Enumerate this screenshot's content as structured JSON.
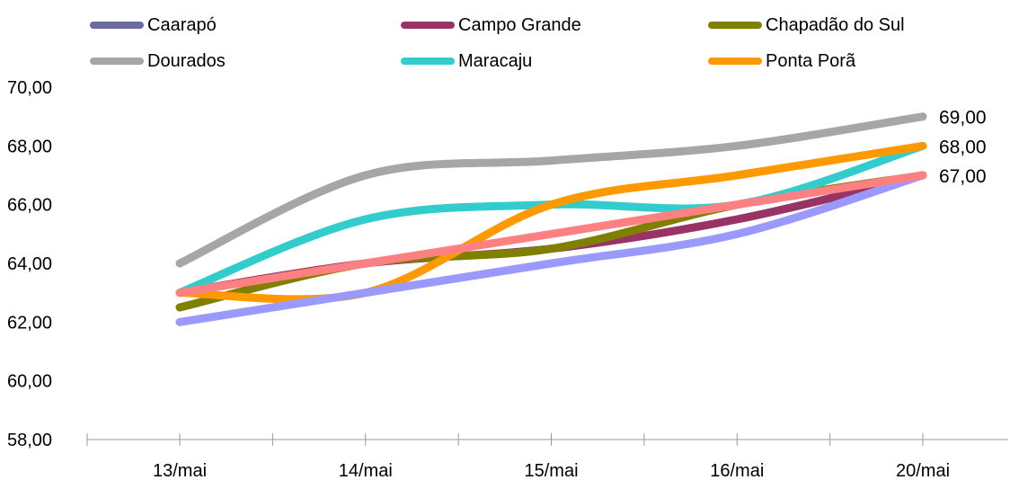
{
  "chart_data": {
    "type": "line",
    "categories": [
      "13/mai",
      "14/mai",
      "15/mai",
      "16/mai",
      "20/mai"
    ],
    "ylim": [
      58,
      70
    ],
    "yticks": [
      "58,00",
      "60,00",
      "62,00",
      "64,00",
      "66,00",
      "68,00",
      "70,00"
    ],
    "smooth": true,
    "legend_position": "top",
    "series": [
      {
        "name": "Caarapó",
        "color": "#6b6b9e",
        "values": [
          62,
          63,
          64,
          65,
          67
        ]
      },
      {
        "name": "Campo Grande",
        "color": "#993366",
        "values": [
          63,
          64,
          64.5,
          65.5,
          67
        ]
      },
      {
        "name": "Chapadão do Sul",
        "color": "#808000",
        "values": [
          62.5,
          64,
          64.5,
          66,
          67
        ]
      },
      {
        "name": "Dourados",
        "color": "#a6a6a6",
        "values": [
          64,
          67,
          67.5,
          68,
          69
        ]
      },
      {
        "name": "Maracaju",
        "color": "#33cccc",
        "values": [
          63,
          65.5,
          66,
          66,
          68
        ]
      },
      {
        "name": "Ponta Porã",
        "color": "#ff9900",
        "values": [
          63,
          63,
          66,
          67,
          68
        ]
      }
    ],
    "overlay_series": [
      {
        "color": "#9999ff",
        "values": [
          62,
          63,
          64,
          65,
          67
        ]
      },
      {
        "color": "#ff8080",
        "values": [
          63,
          64,
          65,
          66,
          67
        ]
      }
    ],
    "end_labels": [
      "69,00",
      "68,00",
      "67,00"
    ]
  }
}
